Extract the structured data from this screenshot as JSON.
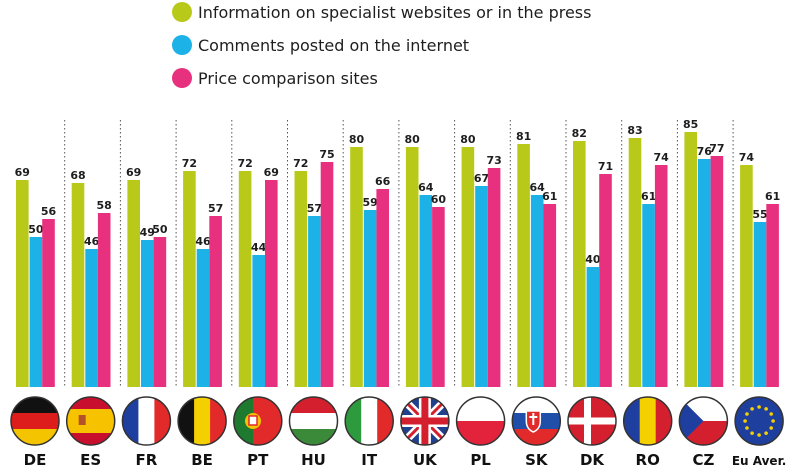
{
  "chart_data": {
    "type": "bar",
    "categories": [
      "DE",
      "ES",
      "FR",
      "BE",
      "PT",
      "HU",
      "IT",
      "UK",
      "PL",
      "SK",
      "DK",
      "RO",
      "CZ",
      "Eu Aver."
    ],
    "series": [
      {
        "name": "Information on specialist websites or in the press",
        "color": "#b8c91a",
        "values": [
          69,
          68,
          69,
          72,
          72,
          72,
          80,
          80,
          80,
          81,
          82,
          83,
          85,
          74
        ]
      },
      {
        "name": "Comments posted on the internet",
        "color": "#1cb2e8",
        "values": [
          50,
          46,
          49,
          46,
          44,
          57,
          59,
          64,
          67,
          64,
          40,
          61,
          76,
          55
        ]
      },
      {
        "name": "Price comparison sites",
        "color": "#e8317e",
        "values": [
          56,
          58,
          50,
          57,
          69,
          75,
          66,
          60,
          73,
          61,
          71,
          74,
          77,
          61
        ]
      }
    ],
    "flags": [
      "germany-flag",
      "spain-flag",
      "france-flag",
      "belgium-flag",
      "portugal-flag",
      "hungary-flag",
      "italy-flag",
      "uk-flag",
      "poland-flag",
      "slovakia-flag",
      "denmark-flag",
      "romania-flag",
      "czech-flag",
      "eu-flag"
    ],
    "ylim": [
      0,
      100
    ],
    "legend_placement": "top-center",
    "grid": false
  }
}
